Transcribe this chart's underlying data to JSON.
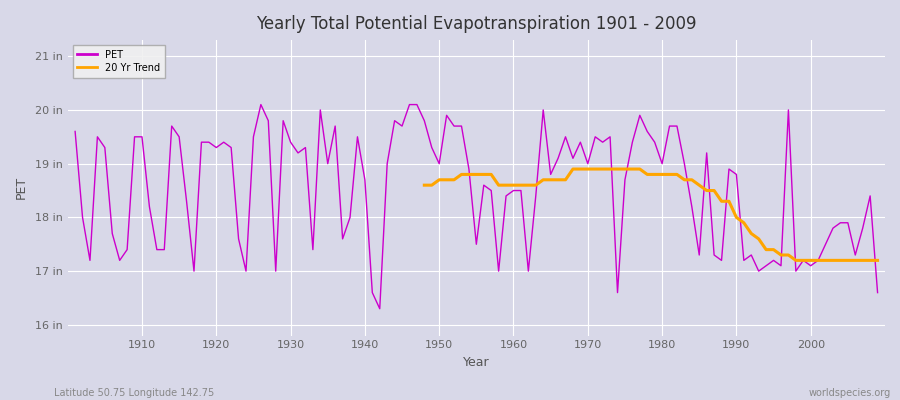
{
  "title": "Yearly Total Potential Evapotranspiration 1901 - 2009",
  "xlabel": "Year",
  "ylabel": "PET",
  "footer_left": "Latitude 50.75 Longitude 142.75",
  "footer_right": "worldspecies.org",
  "bg_color": "#d8d8e8",
  "plot_bg_color": "#d8d8e8",
  "pet_color": "#cc00cc",
  "trend_color": "#ffa500",
  "ylim": [
    15.8,
    21.3
  ],
  "yticks": [
    16,
    17,
    18,
    19,
    20,
    21
  ],
  "ytick_labels": [
    "16 in",
    "17 in",
    "18 in",
    "19 in",
    "20 in",
    "21 in"
  ],
  "years": [
    1901,
    1902,
    1903,
    1904,
    1905,
    1906,
    1907,
    1908,
    1909,
    1910,
    1911,
    1912,
    1913,
    1914,
    1915,
    1916,
    1917,
    1918,
    1919,
    1920,
    1921,
    1922,
    1923,
    1924,
    1925,
    1926,
    1927,
    1928,
    1929,
    1930,
    1931,
    1932,
    1933,
    1934,
    1935,
    1936,
    1937,
    1938,
    1939,
    1940,
    1941,
    1942,
    1943,
    1944,
    1945,
    1946,
    1947,
    1948,
    1949,
    1950,
    1951,
    1952,
    1953,
    1954,
    1955,
    1956,
    1957,
    1958,
    1959,
    1960,
    1961,
    1962,
    1963,
    1964,
    1965,
    1966,
    1967,
    1968,
    1969,
    1970,
    1971,
    1972,
    1973,
    1974,
    1975,
    1976,
    1977,
    1978,
    1979,
    1980,
    1981,
    1982,
    1983,
    1984,
    1985,
    1986,
    1987,
    1988,
    1989,
    1990,
    1991,
    1992,
    1993,
    1994,
    1995,
    1996,
    1997,
    1998,
    1999,
    2000,
    2001,
    2002,
    2003,
    2004,
    2005,
    2006,
    2007,
    2008,
    2009
  ],
  "pet_values": [
    19.6,
    18.0,
    17.2,
    19.5,
    19.3,
    17.7,
    17.2,
    17.4,
    19.5,
    19.5,
    18.2,
    17.4,
    17.4,
    19.7,
    19.5,
    18.3,
    17.0,
    19.4,
    19.4,
    19.3,
    19.4,
    19.3,
    17.6,
    17.0,
    19.5,
    20.1,
    19.8,
    17.0,
    19.8,
    19.4,
    19.2,
    19.3,
    17.4,
    20.0,
    19.0,
    19.7,
    17.6,
    18.0,
    19.5,
    18.7,
    16.6,
    16.3,
    19.0,
    19.8,
    19.7,
    20.1,
    20.1,
    19.8,
    19.3,
    19.0,
    19.9,
    19.7,
    19.7,
    18.9,
    17.5,
    18.6,
    18.5,
    17.0,
    18.4,
    18.5,
    18.5,
    17.0,
    18.4,
    20.0,
    18.8,
    19.1,
    19.5,
    19.1,
    19.4,
    19.0,
    19.5,
    19.4,
    19.5,
    16.6,
    18.7,
    19.4,
    19.9,
    19.6,
    19.4,
    19.0,
    19.7,
    19.7,
    19.0,
    18.2,
    17.3,
    19.2,
    17.3,
    17.2,
    18.9,
    18.8,
    17.2,
    17.3,
    17.0,
    17.1,
    17.2,
    17.1,
    20.0,
    17.0,
    17.2,
    17.1,
    17.2,
    17.5,
    17.8,
    17.9,
    17.9,
    17.3,
    17.8,
    18.4,
    16.6
  ],
  "trend_values_years": [
    1948,
    1949,
    1950,
    1951,
    1952,
    1953,
    1954,
    1955,
    1956,
    1957,
    1958,
    1959,
    1960,
    1961,
    1962,
    1963,
    1964,
    1965,
    1966,
    1967,
    1968,
    1969,
    1970,
    1971,
    1972,
    1973,
    1974,
    1975,
    1976,
    1977,
    1978,
    1979,
    1980,
    1981,
    1982,
    1983,
    1984,
    1985,
    1986,
    1987,
    1988,
    1989,
    1990,
    1991,
    1992,
    1993,
    1994,
    1995,
    1996,
    1997,
    1998,
    1999,
    2000,
    2001,
    2002,
    2003,
    2004,
    2005,
    2006,
    2007,
    2008,
    2009
  ],
  "trend_values": [
    18.6,
    18.6,
    18.7,
    18.7,
    18.7,
    18.8,
    18.8,
    18.8,
    18.8,
    18.8,
    18.6,
    18.6,
    18.6,
    18.6,
    18.6,
    18.6,
    18.7,
    18.7,
    18.7,
    18.7,
    18.9,
    18.9,
    18.9,
    18.9,
    18.9,
    18.9,
    18.9,
    18.9,
    18.9,
    18.9,
    18.8,
    18.8,
    18.8,
    18.8,
    18.8,
    18.7,
    18.7,
    18.6,
    18.5,
    18.5,
    18.3,
    18.3,
    18.0,
    17.9,
    17.7,
    17.6,
    17.4,
    17.4,
    17.3,
    17.3,
    17.2,
    17.2,
    17.2,
    17.2,
    17.2,
    17.2,
    17.2,
    17.2,
    17.2,
    17.2,
    17.2,
    17.2
  ]
}
